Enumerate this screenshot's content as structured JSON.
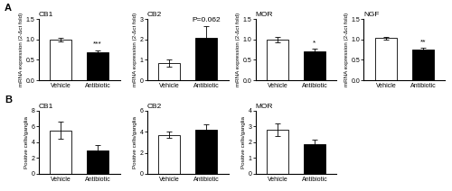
{
  "chart_data": [
    {
      "type": "bar",
      "title": "CB1",
      "ylabel": "mRNA expression (2-Δct fold)",
      "categories": [
        "Vehicle",
        "Antibiotic"
      ],
      "values": [
        1.0,
        0.68
      ],
      "errors": [
        0.04,
        0.06
      ],
      "colors": [
        "white",
        "black"
      ],
      "ylim": [
        0,
        1.5
      ],
      "yticks": [
        {
          "value": 0,
          "label": "0.0"
        },
        0.5,
        {
          "value": 1,
          "label": "1.0"
        },
        1.5
      ],
      "annotations": [
        {
          "text": "A"
        },
        {
          "text": "***",
          "category": "Antibiotic"
        }
      ]
    },
    {
      "type": "bar",
      "title": "CB2",
      "ylabel": "mRNA expression (2-Δct fold)",
      "categories": [
        "Vehicle",
        "Antibiotic"
      ],
      "values": [
        0.85,
        2.1
      ],
      "errors": [
        0.18,
        0.55
      ],
      "colors": [
        "white",
        "black"
      ],
      "ylim": [
        0,
        3
      ],
      "yticks": [
        0,
        1,
        2,
        3
      ],
      "annotations": [
        {
          "text": "P=0.062",
          "category": "Antibiotic"
        }
      ]
    },
    {
      "type": "bar",
      "title": "MOR",
      "ylabel": "mRNA expression (2-Δct fold)",
      "categories": [
        "Vehicle",
        "Antibiotic"
      ],
      "values": [
        1.0,
        0.7
      ],
      "errors": [
        0.07,
        0.08
      ],
      "colors": [
        "white",
        "black"
      ],
      "ylim": [
        0,
        1.5
      ],
      "yticks": [
        {
          "value": 0,
          "label": "0.0"
        },
        0.5,
        {
          "value": 1,
          "label": "1.0"
        },
        1.5
      ],
      "annotations": [
        {
          "text": "*",
          "category": "Antibiotic"
        }
      ]
    },
    {
      "type": "bar",
      "title": "NGF",
      "ylabel": "mRNA expression (2-Δct fold)",
      "categories": [
        "Vehicle",
        "Antibiotic"
      ],
      "values": [
        1.03,
        0.75
      ],
      "errors": [
        0.04,
        0.05
      ],
      "colors": [
        "white",
        "black"
      ],
      "ylim": [
        0,
        1.5
      ],
      "yticks": [
        {
          "value": 0,
          "label": "0.0"
        },
        0.5,
        {
          "value": 1,
          "label": "1.0"
        },
        1.5
      ],
      "annotations": [
        {
          "text": "**",
          "category": "Antibiotic"
        }
      ]
    },
    {
      "type": "bar",
      "title": "CB1",
      "ylabel": "Positive cells/ganglia",
      "categories": [
        "Vehicle",
        "Antibiotic"
      ],
      "values": [
        5.5,
        3.0
      ],
      "errors": [
        1.1,
        0.7
      ],
      "colors": [
        "white",
        "black"
      ],
      "ylim": [
        0,
        8
      ],
      "yticks": [
        0,
        2,
        4,
        6,
        8
      ],
      "annotations": [
        {
          "text": "B"
        }
      ]
    },
    {
      "type": "bar",
      "title": "CB2",
      "ylabel": "Positive cells/ganglia",
      "categories": [
        "Vehicle",
        "Antibiotic"
      ],
      "values": [
        3.7,
        4.2
      ],
      "errors": [
        0.3,
        0.55
      ],
      "colors": [
        "white",
        "black"
      ],
      "ylim": [
        0,
        6
      ],
      "yticks": [
        0,
        2,
        4,
        6
      ]
    },
    {
      "type": "bar",
      "title": "MOR",
      "ylabel": "Positive cells/ganglia",
      "categories": [
        "Vehicle",
        "Antibiotic"
      ],
      "values": [
        2.8,
        1.9
      ],
      "errors": [
        0.4,
        0.25
      ],
      "colors": [
        "white",
        "black"
      ],
      "ylim": [
        0,
        4
      ],
      "yticks": [
        0,
        1,
        2,
        3,
        4
      ]
    }
  ]
}
